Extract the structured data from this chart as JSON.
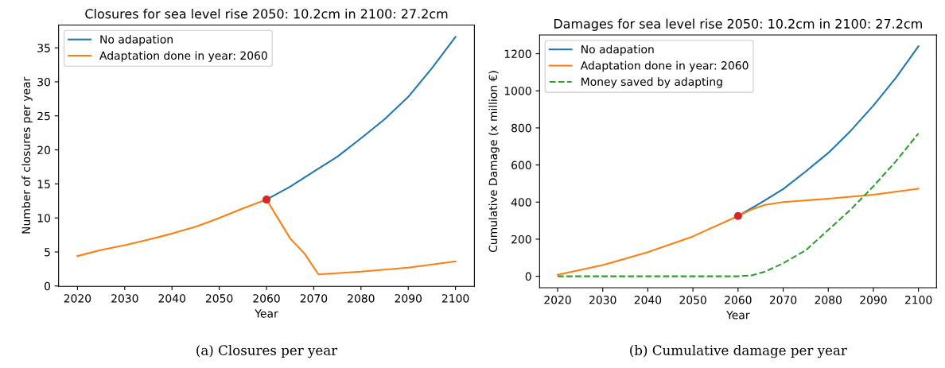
{
  "chart_data": [
    {
      "type": "line",
      "title": "Closures for sea level rise 2050: 10.2cm in 2100: 27.2cm",
      "xlabel": "Year",
      "ylabel": "Number of closures per year",
      "xlim": [
        2016,
        2104
      ],
      "xticks": [
        2020,
        2030,
        2040,
        2050,
        2060,
        2070,
        2080,
        2090,
        2100
      ],
      "ylim": [
        -0.05,
        38.35
      ],
      "yticks": [
        0,
        5,
        10,
        15,
        20,
        25,
        30,
        35
      ],
      "legend": "top left",
      "grid": false,
      "annotations": [
        "(a) Closures per year"
      ],
      "series": [
        {
          "name": "No adapation",
          "color": "#1f77b4",
          "x": [
            2060,
            2065,
            2070,
            2075,
            2080,
            2085,
            2090,
            2095,
            2100
          ],
          "values": [
            12.7,
            14.6,
            16.8,
            19.0,
            21.7,
            24.5,
            27.8,
            32.0,
            36.6
          ]
        },
        {
          "name": "Adaptation done in year: 2060",
          "color": "#ff7f0e",
          "x": [
            2020,
            2025,
            2030,
            2035,
            2040,
            2045,
            2050,
            2055,
            2060,
            2065,
            2068,
            2071,
            2080,
            2090,
            2100
          ],
          "values": [
            4.4,
            5.3,
            6.0,
            6.8,
            7.7,
            8.7,
            10.0,
            11.4,
            12.7,
            7.0,
            4.8,
            1.7,
            2.1,
            2.7,
            3.6
          ]
        },
        {
          "type": "scatter",
          "color": "#d62728",
          "marker": "circle",
          "x": [
            2060
          ],
          "values": [
            12.7
          ]
        }
      ]
    },
    {
      "type": "line",
      "title": "Damages for sea level rise 2050: 10.2cm in 2100: 27.2cm",
      "xlabel": "Year",
      "ylabel": "Cumulative Damage (x million €)",
      "xlim": [
        2016,
        2104
      ],
      "xticks": [
        2020,
        2030,
        2040,
        2050,
        2060,
        2070,
        2080,
        2090,
        2100
      ],
      "ylim": [
        -62,
        1301
      ],
      "yticks": [
        0,
        200,
        400,
        600,
        800,
        1000,
        1200
      ],
      "legend": "top left",
      "grid": false,
      "annotations": [
        "(b) Cumulative damage per year"
      ],
      "series": [
        {
          "name": "No adapation",
          "color": "#1f77b4",
          "x": [
            2060,
            2065,
            2070,
            2075,
            2080,
            2085,
            2090,
            2095,
            2100
          ],
          "values": [
            325,
            395,
            470,
            565,
            665,
            785,
            920,
            1070,
            1240
          ]
        },
        {
          "name": "Adaptation done in year: 2060",
          "color": "#ff7f0e",
          "x": [
            2020,
            2030,
            2040,
            2050,
            2060,
            2063,
            2066,
            2070,
            2080,
            2090,
            2100
          ],
          "values": [
            8,
            60,
            130,
            215,
            325,
            360,
            385,
            400,
            418,
            440,
            472
          ]
        },
        {
          "name": "Money saved by adapting",
          "color": "#2ca02c",
          "line_style": "dashed",
          "x": [
            2020,
            2060,
            2063,
            2066,
            2070,
            2075,
            2080,
            2085,
            2090,
            2095,
            2100
          ],
          "values": [
            0,
            0,
            5,
            25,
            70,
            140,
            250,
            360,
            485,
            620,
            770
          ]
        },
        {
          "type": "scatter",
          "color": "#d62728",
          "marker": "circle",
          "x": [
            2060
          ],
          "values": [
            325
          ]
        }
      ]
    }
  ]
}
